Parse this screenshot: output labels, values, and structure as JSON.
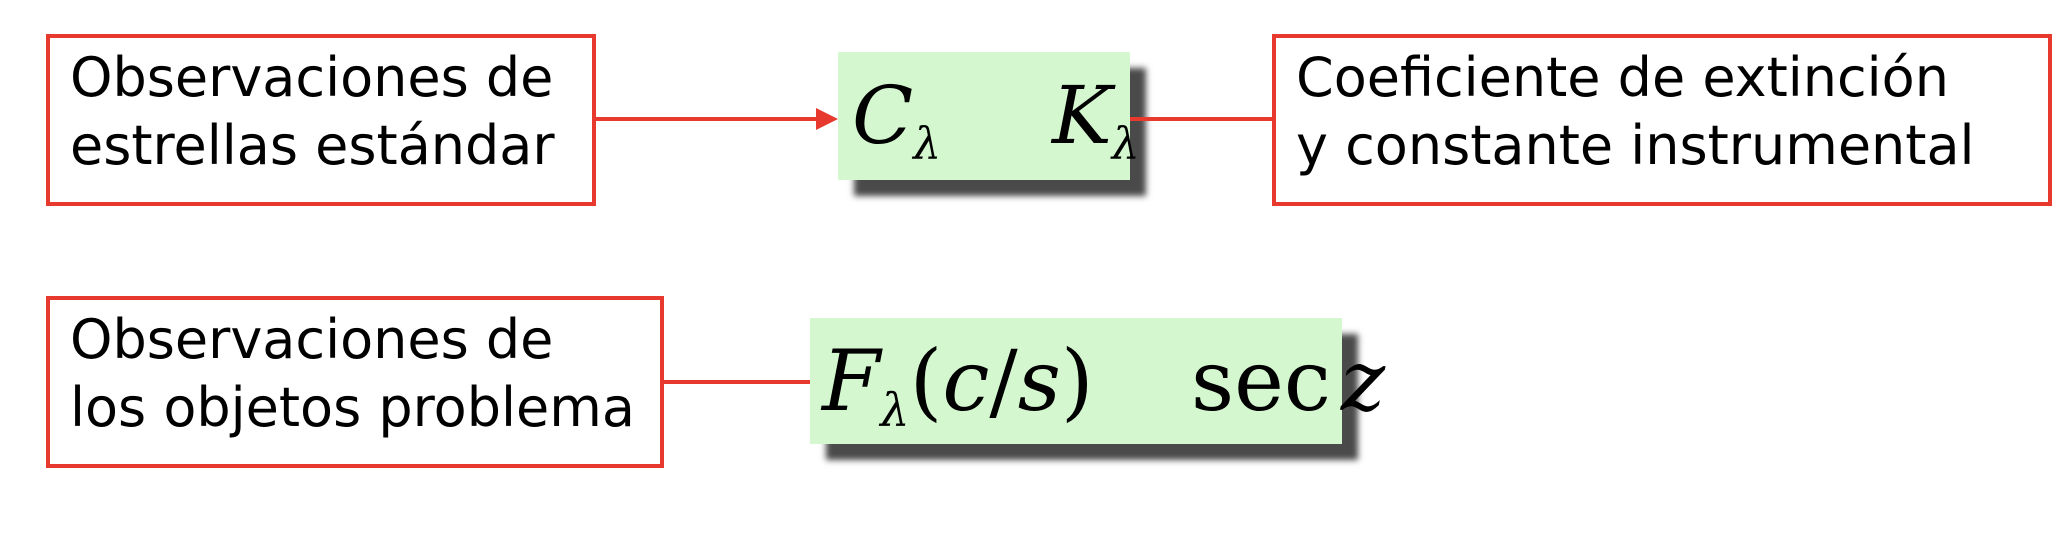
{
  "diagram": {
    "standard_obs": {
      "line1": "Observaciones de",
      "line2": "estrellas estándar"
    },
    "coefficients": {
      "c_symbol": "C",
      "c_subscript": "λ",
      "k_symbol": "K",
      "k_subscript": "λ"
    },
    "result": {
      "line1": "Coeficiente de extinción",
      "line2": "y constante instrumental"
    },
    "object_obs": {
      "line1": "Observaciones de",
      "line2": "los objetos problema"
    },
    "measurements": {
      "f_symbol": "F",
      "f_subscript": "λ",
      "paren_open": "(",
      "c": "c",
      "slash": "/",
      "s": "s",
      "paren_close": ")",
      "sec": "sec",
      "z": "z"
    }
  },
  "colors": {
    "border": "#e8392f",
    "formula_bg": "#d4f7cf",
    "shadow": "#4a4a4a"
  }
}
